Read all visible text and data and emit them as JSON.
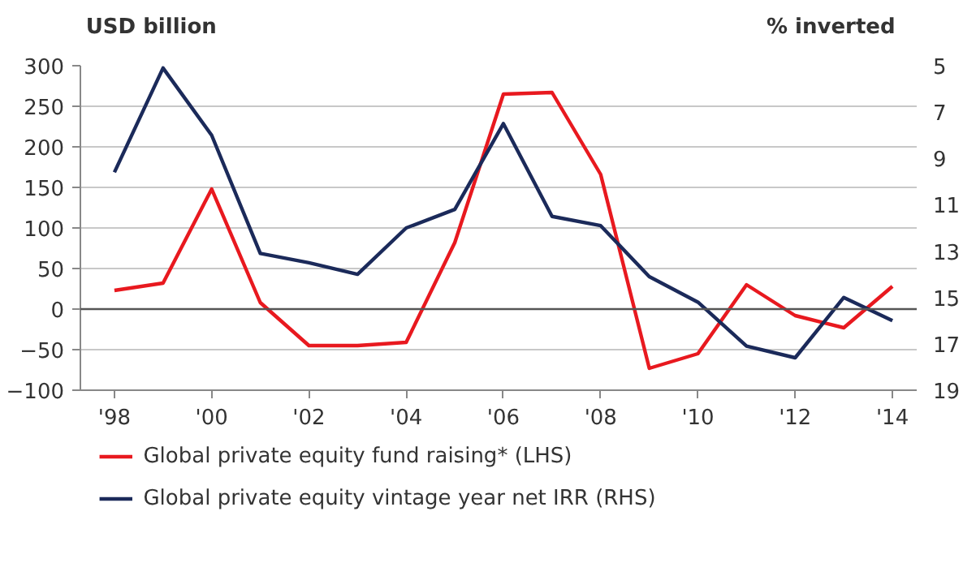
{
  "chart_data": {
    "type": "line",
    "ylabel": "USD billion",
    "y2label": "% inverted",
    "x": [
      1998,
      1999,
      2000,
      2001,
      2002,
      2003,
      2004,
      2005,
      2006,
      2007,
      2008,
      2009,
      2010,
      2011,
      2012,
      2013,
      2014
    ],
    "series": [
      {
        "name": "Global private equity fund raising* (LHS)",
        "color": "#e8191f",
        "values": [
          23,
          32,
          148,
          8,
          -45,
          -45,
          -41,
          82,
          265,
          267,
          166,
          -73,
          -55,
          30,
          -8,
          -23,
          28
        ]
      },
      {
        "name": "Global private equity vintage year net IRR (RHS)",
        "color": "#1b2a5a",
        "axis": "y2",
        "values": [
          9.6,
          5.1,
          8.0,
          13.1,
          13.5,
          14.0,
          12.0,
          11.2,
          7.5,
          11.5,
          11.9,
          14.1,
          15.2,
          17.1,
          17.6,
          15.0,
          16.0
        ]
      }
    ],
    "xlim": [
      1997.3,
      2014.5
    ],
    "xticks": [
      {
        "value": 1998,
        "label": "'98"
      },
      {
        "value": 2000,
        "label": "'00"
      },
      {
        "value": 2002,
        "label": "'02"
      },
      {
        "value": 2004,
        "label": "'04"
      },
      {
        "value": 2006,
        "label": "'06"
      },
      {
        "value": 2008,
        "label": "'08"
      },
      {
        "value": 2010,
        "label": "'10"
      },
      {
        "value": 2012,
        "label": "'12"
      },
      {
        "value": 2014,
        "label": "'14"
      }
    ],
    "ylim": [
      -100,
      300
    ],
    "yticks": [
      -100,
      -50,
      0,
      50,
      100,
      150,
      200,
      250,
      300
    ],
    "y2lim": [
      19,
      5
    ],
    "y2ticks": [
      5,
      7,
      9,
      11,
      13,
      15,
      17,
      19
    ],
    "ref_lines": [
      {
        "axis": "y",
        "value": 0,
        "color": "#555555"
      }
    ],
    "grid": "y",
    "legend": "bottom",
    "marker": "none",
    "line_style": "solid"
  }
}
